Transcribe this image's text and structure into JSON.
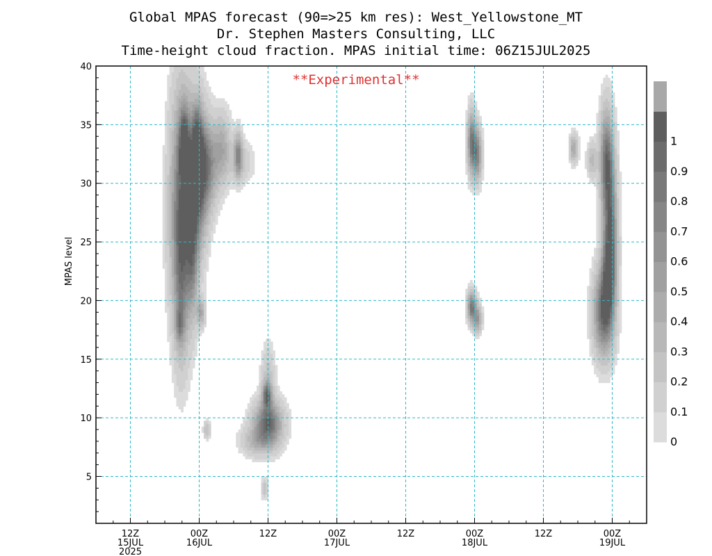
{
  "title_lines": [
    "Global MPAS forecast (90=>25 km res): West_Yellowstone_MT",
    "Dr. Stephen Masters Consulting, LLC",
    "Time-height cloud fraction.   MPAS initial time: 06Z15JUL2025"
  ],
  "annotation": "**Experimental**",
  "chart_data": {
    "type": "heatmap",
    "title": "Time-height cloud fraction.",
    "ylabel": "MPAS level",
    "xlabel": "",
    "x_unit": "hours since 06Z15JUL2025",
    "xlim": [
      0,
      96
    ],
    "ylim": [
      1,
      40
    ],
    "yticks": [
      5,
      10,
      15,
      20,
      25,
      30,
      35,
      40
    ],
    "xticks": [
      {
        "h": 6,
        "line1": "12Z",
        "line2": "15JUL",
        "line3": "2025"
      },
      {
        "h": 18,
        "line1": "00Z",
        "line2": "16JUL",
        "line3": ""
      },
      {
        "h": 30,
        "line1": "12Z",
        "line2": "",
        "line3": ""
      },
      {
        "h": 42,
        "line1": "00Z",
        "line2": "17JUL",
        "line3": ""
      },
      {
        "h": 54,
        "line1": "12Z",
        "line2": "",
        "line3": ""
      },
      {
        "h": 66,
        "line1": "00Z",
        "line2": "18JUL",
        "line3": ""
      },
      {
        "h": 78,
        "line1": "12Z",
        "line2": "",
        "line3": ""
      },
      {
        "h": 90,
        "line1": "00Z",
        "line2": "19JUL",
        "line3": ""
      }
    ],
    "grid": true,
    "colorbar": {
      "labels": [
        "0",
        "0.1",
        "0.2",
        "0.3",
        "0.4",
        "0.5",
        "0.6",
        "0.7",
        "0.8",
        "0.9",
        "1"
      ],
      "colors": [
        "#dcdcdc",
        "#d0d0d0",
        "#c4c4c4",
        "#b8b8b8",
        "#acacac",
        "#a0a0a0",
        "#939393",
        "#868686",
        "#797979",
        "#6c6c6c",
        "#5e5e5e",
        "#a8a8a8"
      ]
    },
    "features": [
      {
        "t": 15.0,
        "lev": 28.0,
        "st": 1.4,
        "sl": 6.5,
        "amp": 0.95
      },
      {
        "t": 17.8,
        "lev": 30.5,
        "st": 1.1,
        "sl": 4.0,
        "amp": 0.95
      },
      {
        "t": 15.4,
        "lev": 33.5,
        "st": 0.6,
        "sl": 2.0,
        "amp": 0.75
      },
      {
        "t": 17.6,
        "lev": 33.5,
        "st": 0.6,
        "sl": 2.0,
        "amp": 0.65
      },
      {
        "t": 19.5,
        "lev": 31.5,
        "st": 1.2,
        "sl": 2.5,
        "amp": 0.65
      },
      {
        "t": 16.8,
        "lev": 24.0,
        "st": 0.7,
        "sl": 3.5,
        "amp": 0.55
      },
      {
        "t": 14.8,
        "lev": 21.0,
        "st": 0.8,
        "sl": 4.5,
        "amp": 0.35
      },
      {
        "t": 14.6,
        "lev": 18.0,
        "st": 0.5,
        "sl": 1.0,
        "amp": 0.4
      },
      {
        "t": 18.3,
        "lev": 19.0,
        "st": 0.5,
        "sl": 0.8,
        "amp": 0.45
      },
      {
        "t": 22.0,
        "lev": 33.0,
        "st": 1.0,
        "sl": 2.0,
        "amp": 0.45
      },
      {
        "t": 24.8,
        "lev": 32.5,
        "st": 0.5,
        "sl": 1.3,
        "amp": 0.65
      },
      {
        "t": 25.2,
        "lev": 31.8,
        "st": 1.5,
        "sl": 1.2,
        "amp": 0.2
      },
      {
        "t": 30.0,
        "lev": 9.5,
        "st": 1.7,
        "sl": 1.3,
        "amp": 0.95
      },
      {
        "t": 29.8,
        "lev": 12.0,
        "st": 0.5,
        "sl": 0.7,
        "amp": 0.7
      },
      {
        "t": 30.0,
        "lev": 13.0,
        "st": 0.8,
        "sl": 2.0,
        "amp": 0.3
      },
      {
        "t": 27.8,
        "lev": 8.0,
        "st": 1.8,
        "sl": 0.8,
        "amp": 0.3
      },
      {
        "t": 19.3,
        "lev": 9.0,
        "st": 0.4,
        "sl": 0.5,
        "amp": 0.3
      },
      {
        "t": 29.4,
        "lev": 4.0,
        "st": 0.4,
        "sl": 0.6,
        "amp": 0.25
      },
      {
        "t": 65.5,
        "lev": 33.5,
        "st": 0.5,
        "sl": 1.8,
        "amp": 0.85
      },
      {
        "t": 66.5,
        "lev": 32.5,
        "st": 0.5,
        "sl": 1.5,
        "amp": 0.75
      },
      {
        "t": 65.5,
        "lev": 19.5,
        "st": 0.5,
        "sl": 0.9,
        "amp": 0.85
      },
      {
        "t": 66.5,
        "lev": 18.5,
        "st": 0.5,
        "sl": 0.8,
        "amp": 0.6
      },
      {
        "t": 89.0,
        "lev": 32.0,
        "st": 0.8,
        "sl": 3.0,
        "amp": 0.85
      },
      {
        "t": 89.7,
        "lev": 26.0,
        "st": 0.8,
        "sl": 4.0,
        "amp": 0.85
      },
      {
        "t": 88.5,
        "lev": 19.0,
        "st": 1.2,
        "sl": 2.5,
        "amp": 0.95
      },
      {
        "t": 89.3,
        "lev": 22.5,
        "st": 0.8,
        "sl": 2.5,
        "amp": 0.6
      },
      {
        "t": 86.5,
        "lev": 32.0,
        "st": 0.6,
        "sl": 1.0,
        "amp": 0.35
      },
      {
        "t": 83.3,
        "lev": 33.0,
        "st": 0.5,
        "sl": 0.8,
        "amp": 0.5
      }
    ]
  }
}
